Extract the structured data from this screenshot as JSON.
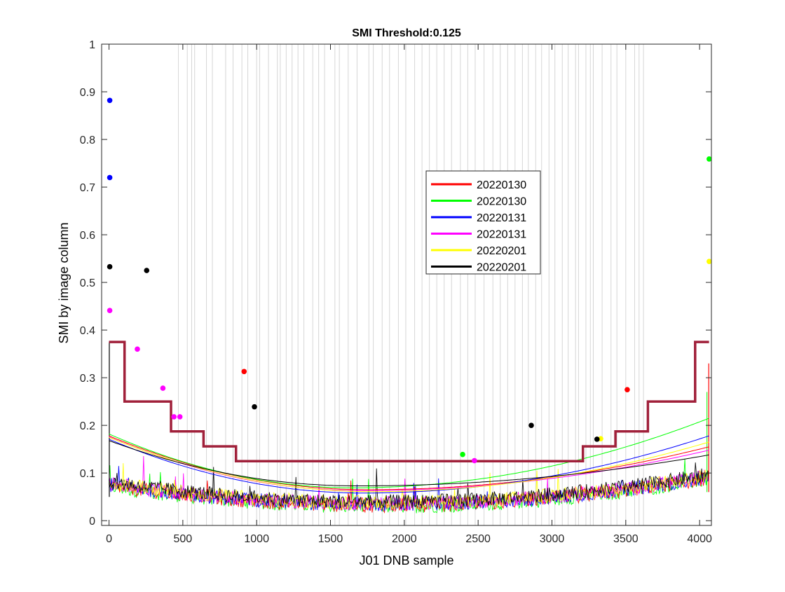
{
  "chart_data": {
    "type": "line",
    "title": "SMI Threshold:0.125",
    "xlabel": "J01 DNB sample",
    "ylabel": "SMI by image column",
    "xlim": [
      -50,
      4080
    ],
    "ylim": [
      -0.01,
      1.0
    ],
    "xticks": [
      0,
      500,
      1000,
      1500,
      2000,
      2500,
      3000,
      3500,
      4000
    ],
    "xtick_labels": [
      "0",
      "500",
      "1000",
      "1500",
      "2000",
      "2500",
      "3000",
      "3500",
      "4000"
    ],
    "yticks": [
      0,
      0.1,
      0.2,
      0.3,
      0.4,
      0.5,
      0.6,
      0.7,
      0.8,
      0.9,
      1
    ],
    "ytick_labels": [
      "0",
      "0.1",
      "0.2",
      "0.3",
      "0.4",
      "0.5",
      "0.6",
      "0.7",
      "0.8",
      "0.9",
      "1"
    ],
    "legend_position": "upper-right-center",
    "series": [
      {
        "name": "20220130",
        "color": "#ff0000"
      },
      {
        "name": "20220130",
        "color": "#00ff00"
      },
      {
        "name": "20220131",
        "color": "#0000ff"
      },
      {
        "name": "20220131",
        "color": "#ff00ff"
      },
      {
        "name": "20220201",
        "color": "#ffff00"
      },
      {
        "name": "20220201",
        "color": "#000000"
      }
    ],
    "threshold_step": {
      "color": "#a0203a",
      "points": [
        [
          0,
          0.375
        ],
        [
          105,
          0.375
        ],
        [
          105,
          0.25
        ],
        [
          420,
          0.25
        ],
        [
          420,
          0.1875
        ],
        [
          640,
          0.1875
        ],
        [
          640,
          0.156
        ],
        [
          860,
          0.156
        ],
        [
          860,
          0.125
        ],
        [
          3210,
          0.125
        ],
        [
          3210,
          0.156
        ],
        [
          3430,
          0.156
        ],
        [
          3430,
          0.1875
        ],
        [
          3650,
          0.1875
        ],
        [
          3650,
          0.25
        ],
        [
          3970,
          0.25
        ],
        [
          3970,
          0.375
        ],
        [
          4064,
          0.375
        ]
      ]
    },
    "fit_curves": [
      {
        "color": "#ff0000",
        "y0": 0.178,
        "ymin": 0.065,
        "xmin": 1750,
        "yend": 0.155
      },
      {
        "color": "#00ff00",
        "y0": 0.182,
        "ymin": 0.069,
        "xmin": 1650,
        "yend": 0.215
      },
      {
        "color": "#0000ff",
        "y0": 0.171,
        "ymin": 0.058,
        "xmin": 1720,
        "yend": 0.178
      },
      {
        "color": "#ff00ff",
        "y0": 0.176,
        "ymin": 0.063,
        "xmin": 1700,
        "yend": 0.148
      },
      {
        "color": "#ffff00",
        "y0": 0.175,
        "ymin": 0.061,
        "xmin": 1780,
        "yend": 0.165
      },
      {
        "color": "#000000",
        "y0": 0.168,
        "ymin": 0.073,
        "xmin": 1680,
        "yend": 0.138
      }
    ],
    "outlier_points": [
      {
        "x": 5,
        "y": 0.882,
        "color": "#0000ff"
      },
      {
        "x": 5,
        "y": 0.72,
        "color": "#0000ff"
      },
      {
        "x": 5,
        "y": 0.533,
        "color": "#000000"
      },
      {
        "x": 5,
        "y": 0.441,
        "color": "#ff00ff"
      },
      {
        "x": 255,
        "y": 0.525,
        "color": "#000000"
      },
      {
        "x": 192,
        "y": 0.36,
        "color": "#ff00ff"
      },
      {
        "x": 365,
        "y": 0.278,
        "color": "#ff00ff"
      },
      {
        "x": 440,
        "y": 0.218,
        "color": "#ff00ff"
      },
      {
        "x": 480,
        "y": 0.218,
        "color": "#ff00ff"
      },
      {
        "x": 915,
        "y": 0.313,
        "color": "#ff0000"
      },
      {
        "x": 985,
        "y": 0.239,
        "color": "#000000"
      },
      {
        "x": 2395,
        "y": 0.139,
        "color": "#00ff00"
      },
      {
        "x": 2475,
        "y": 0.126,
        "color": "#ff00ff"
      },
      {
        "x": 2860,
        "y": 0.2,
        "color": "#000000"
      },
      {
        "x": 3330,
        "y": 0.172,
        "color": "#ffff00"
      },
      {
        "x": 3305,
        "y": 0.171,
        "color": "#000000"
      },
      {
        "x": 3510,
        "y": 0.275,
        "color": "#ff0000"
      },
      {
        "x": 4065,
        "y": 0.759,
        "color": "#00ff00"
      },
      {
        "x": 4065,
        "y": 0.544,
        "color": "#ffff00"
      }
    ],
    "vertical_grid_lines_x": [
      470,
      530,
      560,
      580,
      660,
      700,
      790,
      840,
      900,
      940,
      1000,
      1020,
      1080,
      1140,
      1160,
      1200,
      1240,
      1280,
      1320,
      1380,
      1420,
      1460,
      1530,
      1560,
      1620,
      1680,
      1760,
      1790,
      1850,
      1900,
      1960,
      2010,
      2070,
      2120,
      2170,
      2220,
      2270,
      2320,
      2380,
      2430,
      2480,
      2540,
      2600,
      2650,
      2700,
      2750,
      2800,
      2840,
      2890,
      2930,
      2980,
      3020,
      3070,
      3110,
      3160,
      3180,
      3230,
      3260,
      3280,
      3340,
      3400,
      3440,
      3500,
      3560,
      3590,
      3620
    ],
    "noise_base": {
      "edge_level": 0.085,
      "center_level": 0.035
    }
  }
}
